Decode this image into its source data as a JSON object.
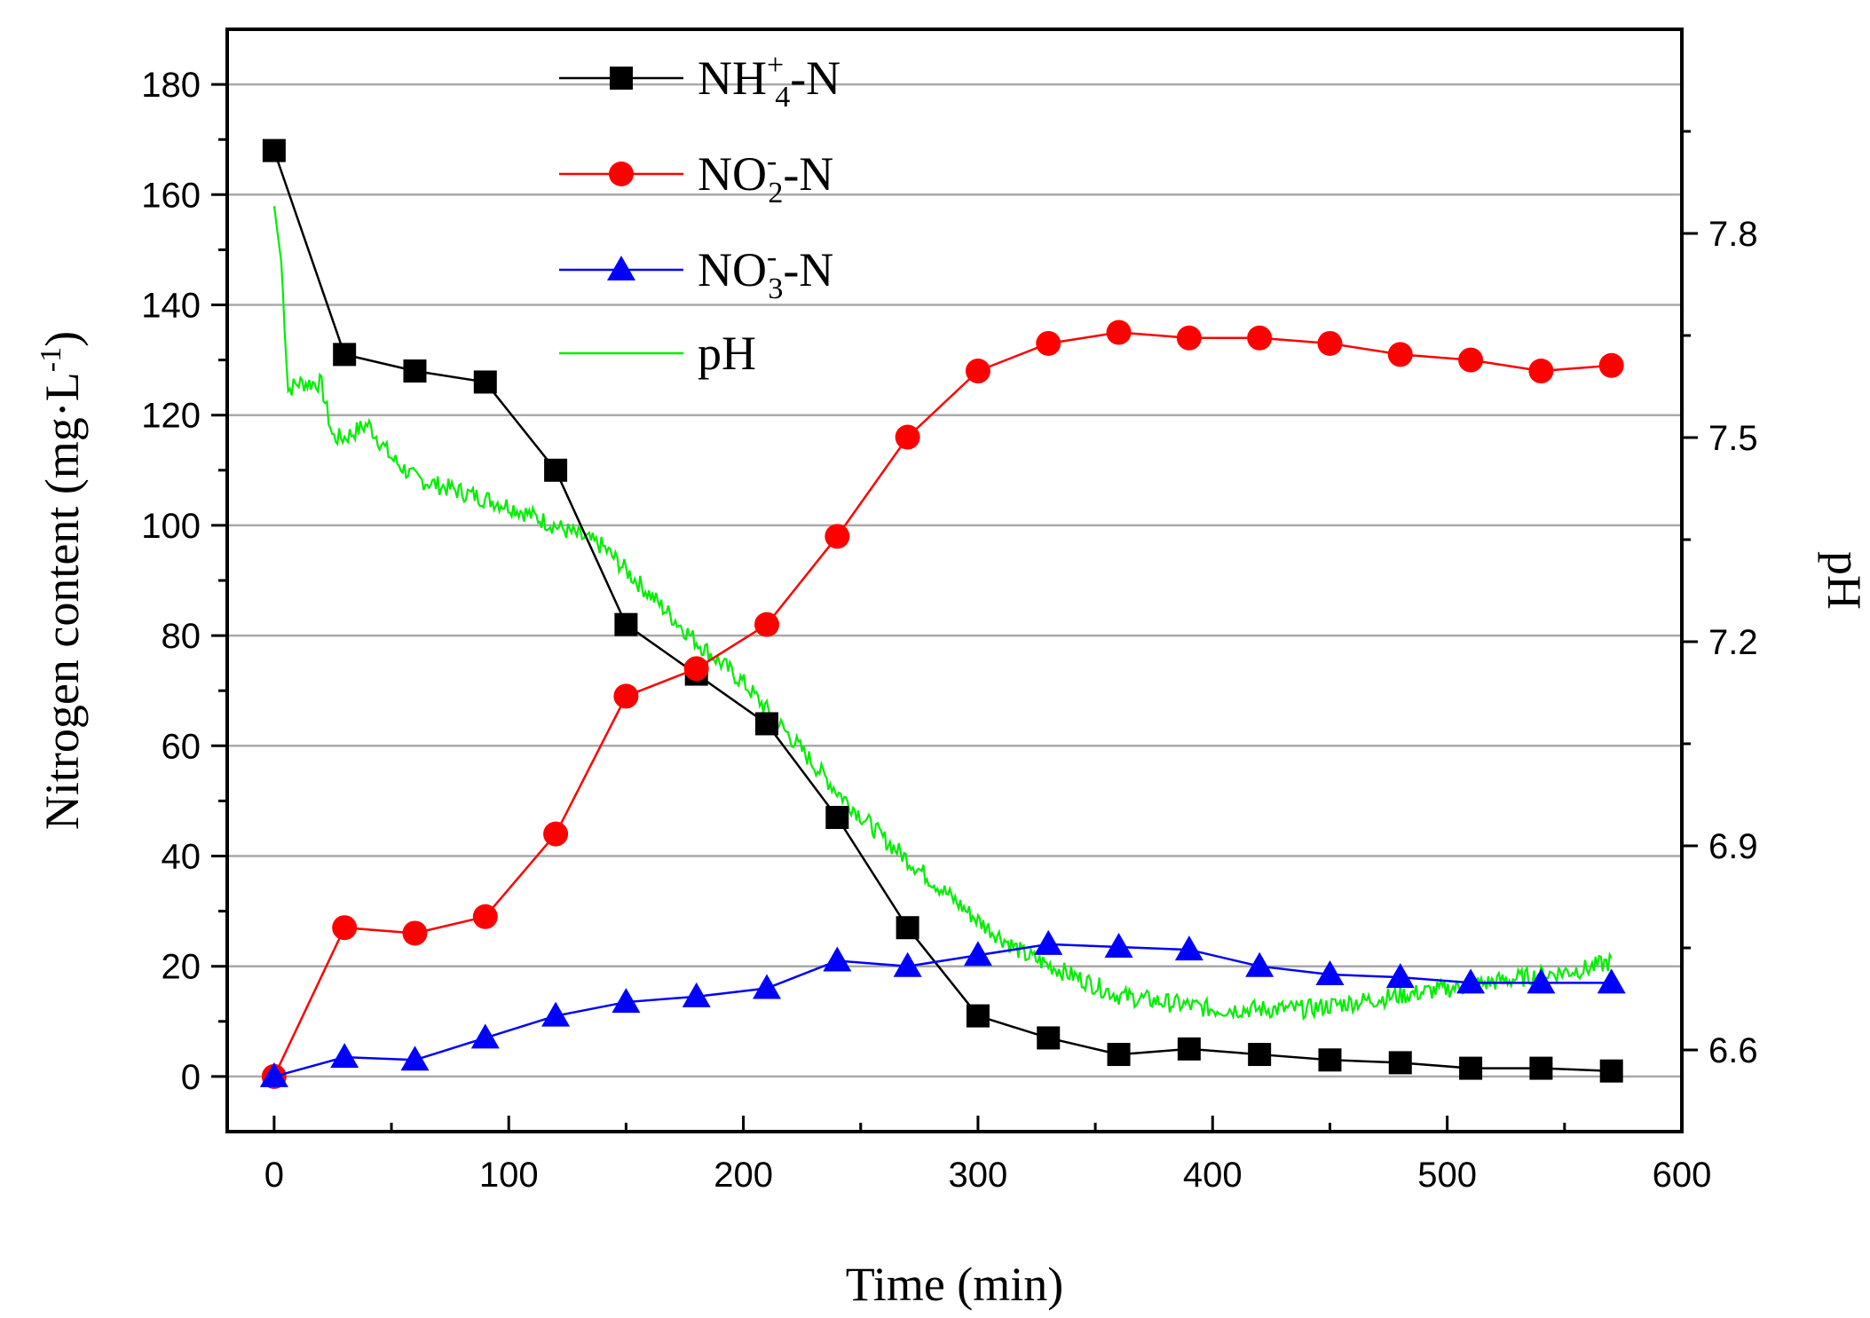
{
  "chart_data": {
    "type": "line",
    "xlabel": "Time (min)",
    "ylabel": "Nitrogen content (mg·L",
    "ylabel_sup": "-1",
    "ylabel_close": ")",
    "y2label": "pH",
    "xlim": [
      -20,
      600
    ],
    "ylim": [
      -10,
      190
    ],
    "y2lim": [
      6.48,
      8.1
    ],
    "x_ticks": [
      0,
      100,
      200,
      300,
      400,
      500,
      600
    ],
    "x_tick_labels": [
      "0",
      "100",
      "200",
      "300",
      "400",
      "500",
      "600"
    ],
    "y_ticks": [
      0,
      20,
      40,
      60,
      80,
      100,
      120,
      140,
      160,
      180
    ],
    "y_tick_labels": [
      "0",
      "20",
      "40",
      "60",
      "80",
      "100",
      "120",
      "140",
      "160",
      "180"
    ],
    "y2_ticks": [
      6.6,
      6.9,
      7.2,
      7.5,
      7.8
    ],
    "y2_tick_labels": [
      "6.6",
      "6.9",
      "7.2",
      "7.5",
      "7.8"
    ],
    "grid": "horizontal",
    "legend_position": "top-center",
    "x": [
      0,
      30,
      60,
      90,
      120,
      150,
      180,
      210,
      240,
      270,
      300,
      330,
      360,
      390,
      420,
      450,
      480,
      510,
      540,
      570
    ],
    "series": [
      {
        "name": "NH4+-N",
        "label_main": "NH",
        "label_sub": "4",
        "label_sup": "+",
        "label_tail": "-N",
        "marker": "square",
        "color": "#000000",
        "axis": "left",
        "values": [
          168,
          131,
          128,
          126,
          110,
          82,
          73,
          64,
          47,
          27,
          11,
          7,
          4,
          5,
          4,
          3,
          2.5,
          1.5,
          1.5,
          1
        ]
      },
      {
        "name": "NO2--N",
        "label_main": "NO",
        "label_sub": "2",
        "label_sup": "-",
        "label_tail": "-N",
        "marker": "circle",
        "color": "#ff0000",
        "axis": "left",
        "values": [
          0,
          27,
          26,
          29,
          44,
          69,
          74,
          82,
          98,
          116,
          128,
          133,
          135,
          134,
          134,
          133,
          131,
          130,
          128,
          129
        ]
      },
      {
        "name": "NO3--N",
        "label_main": "NO",
        "label_sub": "3",
        "label_sup": "-",
        "label_tail": "-N",
        "marker": "triangle",
        "color": "#0000ff",
        "axis": "left",
        "values": [
          0,
          3.5,
          3,
          7,
          11,
          13.5,
          14.5,
          16,
          21,
          20,
          22,
          24,
          23.5,
          23,
          20,
          18.5,
          18,
          17,
          17,
          17
        ]
      }
    ],
    "ph_series": {
      "name": "pH",
      "color": "#00ee00",
      "axis": "right",
      "x": [
        0,
        3,
        6,
        10,
        15,
        20,
        25,
        30,
        40,
        50,
        60,
        80,
        100,
        120,
        140,
        160,
        180,
        200,
        220,
        240,
        260,
        280,
        300,
        320,
        340,
        360,
        380,
        400,
        420,
        440,
        460,
        480,
        500,
        520,
        540,
        560,
        570
      ],
      "values": [
        7.84,
        7.76,
        7.57,
        7.58,
        7.58,
        7.58,
        7.5,
        7.5,
        7.52,
        7.47,
        7.44,
        7.42,
        7.4,
        7.37,
        7.34,
        7.27,
        7.2,
        7.14,
        7.06,
        6.98,
        6.91,
        6.85,
        6.79,
        6.74,
        6.71,
        6.68,
        6.67,
        6.66,
        6.66,
        6.66,
        6.67,
        6.68,
        6.69,
        6.7,
        6.71,
        6.72,
        6.73
      ]
    }
  }
}
